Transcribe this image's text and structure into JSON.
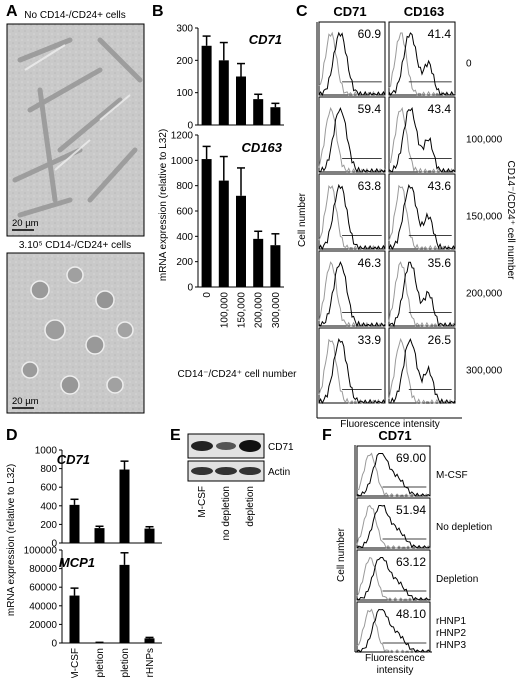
{
  "panelA": {
    "label": "A",
    "top_caption": "No CD14-/CD24+ cells",
    "bottom_caption": "3.10⁵ CD14-/CD24+ cells",
    "scale_top": "20 µm",
    "scale_bottom": "20 µm"
  },
  "panelB": {
    "label": "B",
    "ylabel": "mRNA expression (relative to L32)",
    "xlabel": "CD14⁻/CD24⁺ cell number"
  },
  "panelC": {
    "label": "C",
    "col1": "CD71",
    "col2": "CD163",
    "ylabel": "Cell number",
    "xlabel": "Fluorescence intensity",
    "right_label": "CD14⁻/CD24⁺ cell number",
    "rows": [
      {
        "cd71": "60.9",
        "cd163": "41.4",
        "condition": "0"
      },
      {
        "cd71": "59.4",
        "cd163": "43.4",
        "condition": "100,000"
      },
      {
        "cd71": "63.8",
        "cd163": "43.6",
        "condition": "150,000"
      },
      {
        "cd71": "46.3",
        "cd163": "35.6",
        "condition": "200,000"
      },
      {
        "cd71": "33.9",
        "cd163": "26.5",
        "condition": "300,000"
      }
    ]
  },
  "panelD": {
    "label": "D",
    "ylabel": "mRNA expression (relative to L32)"
  },
  "panelE": {
    "label": "E",
    "band1": "CD71",
    "band2": "Actin",
    "lanes": [
      "M-CSF",
      "no depletion",
      "depletion"
    ]
  },
  "panelF": {
    "label": "F",
    "title": "CD71",
    "ylabel": "Cell number",
    "xlabel_line1": "Fluorescence",
    "xlabel_line2": "intensity",
    "rows": [
      {
        "value": "69.00",
        "label": "M-CSF"
      },
      {
        "value": "51.94",
        "label": "No depletion"
      },
      {
        "value": "63.12",
        "label": "Depletion"
      },
      {
        "value": "48.10",
        "label_lines": [
          "rHNP1",
          "rHNP2",
          "rHNP3"
        ]
      }
    ]
  },
  "chart_data": [
    {
      "type": "bar",
      "title": "CD71",
      "categories": [
        "0",
        "100,000",
        "150,000",
        "200,000",
        "300,000"
      ],
      "values": [
        245,
        200,
        150,
        80,
        55
      ],
      "errors": [
        30,
        55,
        40,
        15,
        12
      ],
      "ylim": [
        0,
        300
      ],
      "yticks": [
        "0",
        "100",
        "200",
        "300"
      ],
      "ylabel": "mRNA expression (relative to L32)",
      "xlabel": "CD14⁻/CD24⁺ cell number"
    },
    {
      "type": "bar",
      "title": "CD163",
      "categories": [
        "0",
        "100,000",
        "150,000",
        "200,000",
        "300,000"
      ],
      "values": [
        1010,
        840,
        720,
        380,
        330
      ],
      "errors": [
        100,
        190,
        220,
        60,
        90
      ],
      "ylim": [
        0,
        1200
      ],
      "yticks": [
        "0",
        "200",
        "400",
        "600",
        "800",
        "1000",
        "1200"
      ],
      "ylabel": "mRNA expression (relative to L32)",
      "xlabel": "CD14⁻/CD24⁺ cell number"
    },
    {
      "type": "bar",
      "title": "CD71",
      "categories": [
        "M-CSF",
        "no depletion",
        "Depletion",
        "rHNPs"
      ],
      "values": [
        410,
        160,
        790,
        155
      ],
      "errors": [
        60,
        20,
        90,
        20
      ],
      "ylim": [
        0,
        1000
      ],
      "yticks": [
        "0",
        "200",
        "400",
        "600",
        "800",
        "1000"
      ],
      "ylabel": "mRNA expression (relative to L32)"
    },
    {
      "type": "bar",
      "title": "MCP1",
      "categories": [
        "M-CSF",
        "no depletion",
        "Depletion",
        "rHNPs"
      ],
      "values": [
        51000,
        500,
        84000,
        5000
      ],
      "errors": [
        8000,
        200,
        13000,
        1000
      ],
      "ylim": [
        0,
        100000
      ],
      "yticks": [
        "0",
        "20000",
        "40000",
        "60000",
        "80000",
        "100000"
      ],
      "ylabel": "mRNA expression (relative to L32)"
    }
  ]
}
